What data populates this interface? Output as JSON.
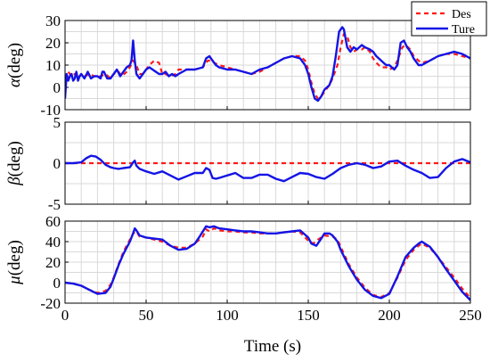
{
  "chart_data": [
    {
      "type": "line",
      "panel": "alpha",
      "ylabel_symbol": "α",
      "ylabel_unit": "(deg)",
      "ylim": [
        -10,
        30
      ],
      "yticks": [
        -10,
        0,
        10,
        20,
        30
      ],
      "xlim": [
        0,
        250
      ],
      "grid": true,
      "legend": {
        "placement": "top-right",
        "entries": [
          "Des",
          "Ture"
        ]
      },
      "series": [
        {
          "name": "Des",
          "color": "#ff1a1a",
          "style": "dashed",
          "x": [
            0,
            2,
            4,
            6,
            8,
            10,
            12,
            15,
            18,
            20,
            22,
            25,
            28,
            30,
            33,
            35,
            38,
            40,
            42,
            44,
            46,
            48,
            50,
            52,
            55,
            58,
            60,
            62,
            65,
            68,
            70,
            75,
            80,
            85,
            88,
            90,
            92,
            95,
            100,
            105,
            110,
            115,
            120,
            125,
            130,
            135,
            140,
            145,
            148,
            150,
            152,
            154,
            156,
            158,
            160,
            163,
            165,
            168,
            170,
            172,
            174,
            176,
            178,
            180,
            183,
            185,
            188,
            190,
            192,
            195,
            198,
            200,
            203,
            205,
            208,
            210,
            213,
            215,
            218,
            220,
            225,
            230,
            235,
            240,
            245,
            250
          ],
          "y": [
            0,
            7,
            5,
            6,
            4,
            6,
            5,
            6,
            5,
            5,
            5,
            6,
            4,
            6,
            7,
            5,
            7,
            9,
            12,
            10,
            6,
            6,
            8,
            10,
            12,
            11,
            6,
            6,
            5,
            6,
            8,
            8,
            8,
            9,
            12,
            12,
            11,
            10,
            9,
            8,
            7,
            6,
            7,
            9,
            11,
            13,
            14,
            14,
            12,
            8,
            2,
            -3,
            -5,
            -4,
            -2,
            1,
            4,
            10,
            18,
            24,
            23,
            18,
            16,
            17,
            17,
            18,
            16,
            13,
            11,
            9,
            9,
            8,
            9,
            12,
            18,
            19,
            17,
            14,
            12,
            11,
            12,
            14,
            15,
            15,
            14,
            13
          ]
        },
        {
          "name": "Ture",
          "color": "#1414e6",
          "style": "solid",
          "x": [
            0,
            1,
            2,
            3,
            4,
            5,
            6,
            7,
            8,
            9,
            10,
            12,
            14,
            16,
            18,
            20,
            22,
            23,
            24,
            26,
            28,
            30,
            32,
            34,
            36,
            38,
            40,
            41,
            42,
            43,
            44,
            46,
            48,
            50,
            52,
            54,
            56,
            58,
            60,
            62,
            64,
            66,
            68,
            70,
            75,
            80,
            85,
            87,
            89,
            91,
            93,
            95,
            100,
            105,
            110,
            115,
            120,
            125,
            130,
            135,
            140,
            145,
            148,
            150,
            152,
            154,
            156,
            158,
            160,
            163,
            165,
            167,
            169,
            171,
            172,
            174,
            176,
            178,
            180,
            183,
            185,
            188,
            190,
            192,
            195,
            198,
            200,
            203,
            205,
            207,
            209,
            211,
            213,
            215,
            218,
            220,
            225,
            230,
            235,
            240,
            245,
            250
          ],
          "y": [
            -5,
            6,
            3,
            5,
            6,
            3,
            4,
            7,
            3,
            5,
            6,
            4,
            7,
            4,
            5,
            5,
            4,
            7,
            7,
            4,
            4,
            6,
            8,
            5,
            7,
            9,
            10,
            12,
            21,
            12,
            6,
            4,
            6,
            8,
            9,
            8,
            7,
            6,
            6,
            7,
            5,
            6,
            5,
            6,
            8,
            8,
            9,
            13,
            14,
            12,
            10,
            9,
            8,
            8,
            7,
            6,
            8,
            9,
            11,
            13,
            14,
            13,
            10,
            6,
            0,
            -5,
            -6,
            -4,
            -1,
            1,
            5,
            14,
            25,
            27,
            26,
            18,
            16,
            18,
            17,
            19,
            18,
            17,
            16,
            14,
            12,
            10,
            10,
            8,
            10,
            20,
            21,
            18,
            16,
            13,
            10,
            10,
            12,
            14,
            15,
            16,
            15,
            13
          ]
        }
      ]
    },
    {
      "type": "line",
      "panel": "beta",
      "ylabel_symbol": "β",
      "ylabel_unit": "(deg)",
      "ylim": [
        -5,
        5
      ],
      "yticks": [
        -5,
        0,
        5
      ],
      "xlim": [
        0,
        250
      ],
      "grid": true,
      "series": [
        {
          "name": "Des",
          "color": "#ff1a1a",
          "style": "dashed",
          "x": [
            0,
            250
          ],
          "y": [
            0,
            0
          ]
        },
        {
          "name": "Ture",
          "color": "#1414e6",
          "style": "solid",
          "x": [
            0,
            5,
            10,
            13,
            16,
            19,
            22,
            25,
            28,
            30,
            33,
            36,
            40,
            42,
            43,
            44,
            46,
            50,
            55,
            60,
            65,
            70,
            75,
            80,
            85,
            87,
            89,
            91,
            93,
            95,
            100,
            105,
            110,
            115,
            120,
            125,
            130,
            135,
            140,
            145,
            150,
            155,
            160,
            165,
            170,
            175,
            180,
            185,
            190,
            195,
            200,
            205,
            210,
            215,
            220,
            225,
            230,
            235,
            240,
            245,
            250
          ],
          "y": [
            0,
            0,
            0.1,
            0.6,
            0.9,
            0.8,
            0.4,
            -0.2,
            -0.5,
            -0.6,
            -0.7,
            -0.6,
            -0.5,
            0.1,
            0.3,
            -0.3,
            -0.7,
            -1.0,
            -1.3,
            -1.0,
            -1.5,
            -2.0,
            -1.6,
            -1.2,
            -1.2,
            -0.6,
            -0.8,
            -1.8,
            -1.9,
            -1.8,
            -1.5,
            -1.2,
            -1.8,
            -1.8,
            -1.4,
            -1.4,
            -1.9,
            -2.2,
            -1.7,
            -1.2,
            -1.3,
            -1.7,
            -1.9,
            -1.3,
            -0.6,
            -0.2,
            0,
            -0.2,
            -0.6,
            -0.4,
            0.2,
            0.3,
            -0.3,
            -0.8,
            -1.2,
            -1.8,
            -1.7,
            -0.6,
            0.2,
            0.5,
            0.1
          ]
        }
      ]
    },
    {
      "type": "line",
      "panel": "mu",
      "ylabel_symbol": "μ",
      "ylabel_unit": "(deg)",
      "ylim": [
        -20,
        60
      ],
      "yticks": [
        -20,
        0,
        20,
        40,
        60
      ],
      "xlim": [
        0,
        250
      ],
      "xticks": [
        0,
        50,
        100,
        150,
        200,
        250
      ],
      "xlabel": "Time (s)",
      "grid": true,
      "series": [
        {
          "name": "Des",
          "color": "#ff1a1a",
          "style": "dashed",
          "x": [
            0,
            5,
            10,
            15,
            20,
            25,
            28,
            30,
            33,
            36,
            40,
            42,
            44,
            46,
            50,
            55,
            60,
            65,
            70,
            75,
            80,
            85,
            87,
            89,
            92,
            95,
            100,
            105,
            110,
            115,
            120,
            125,
            130,
            135,
            140,
            145,
            150,
            153,
            156,
            160,
            165,
            168,
            170,
            175,
            180,
            185,
            190,
            195,
            200,
            205,
            210,
            215,
            218,
            220,
            225,
            230,
            235,
            240,
            245,
            250
          ],
          "y": [
            0,
            -1,
            -3,
            -7,
            -10,
            -8,
            -2,
            5,
            18,
            30,
            42,
            48,
            50,
            45,
            44,
            42,
            40,
            36,
            34,
            34,
            38,
            45,
            52,
            50,
            53,
            51,
            50,
            50,
            49,
            49,
            48,
            48,
            48,
            49,
            50,
            49,
            41,
            38,
            42,
            46,
            45,
            42,
            35,
            18,
            5,
            -5,
            -12,
            -14,
            -10,
            5,
            22,
            32,
            36,
            38,
            34,
            25,
            15,
            5,
            -6,
            -15
          ]
        },
        {
          "name": "Ture",
          "color": "#1414e6",
          "style": "solid",
          "x": [
            0,
            5,
            10,
            15,
            20,
            25,
            28,
            30,
            33,
            36,
            40,
            42,
            43,
            44,
            46,
            50,
            55,
            60,
            65,
            70,
            75,
            80,
            83,
            85,
            87,
            89,
            92,
            95,
            100,
            105,
            110,
            115,
            120,
            125,
            130,
            135,
            140,
            145,
            150,
            152,
            155,
            158,
            160,
            163,
            165,
            168,
            170,
            175,
            180,
            185,
            190,
            195,
            200,
            205,
            210,
            215,
            218,
            220,
            225,
            230,
            235,
            240,
            245,
            250
          ],
          "y": [
            0,
            -1,
            -3,
            -7,
            -11,
            -10,
            -4,
            4,
            17,
            28,
            40,
            48,
            53,
            51,
            46,
            44,
            43,
            42,
            36,
            32,
            33,
            38,
            45,
            50,
            55,
            54,
            55,
            53,
            52,
            51,
            50,
            50,
            49,
            48,
            48,
            49,
            50,
            51,
            44,
            38,
            36,
            43,
            48,
            48,
            46,
            40,
            32,
            16,
            3,
            -7,
            -13,
            -15,
            -11,
            6,
            25,
            34,
            38,
            40,
            35,
            25,
            13,
            2,
            -9,
            -17
          ]
        }
      ]
    }
  ]
}
